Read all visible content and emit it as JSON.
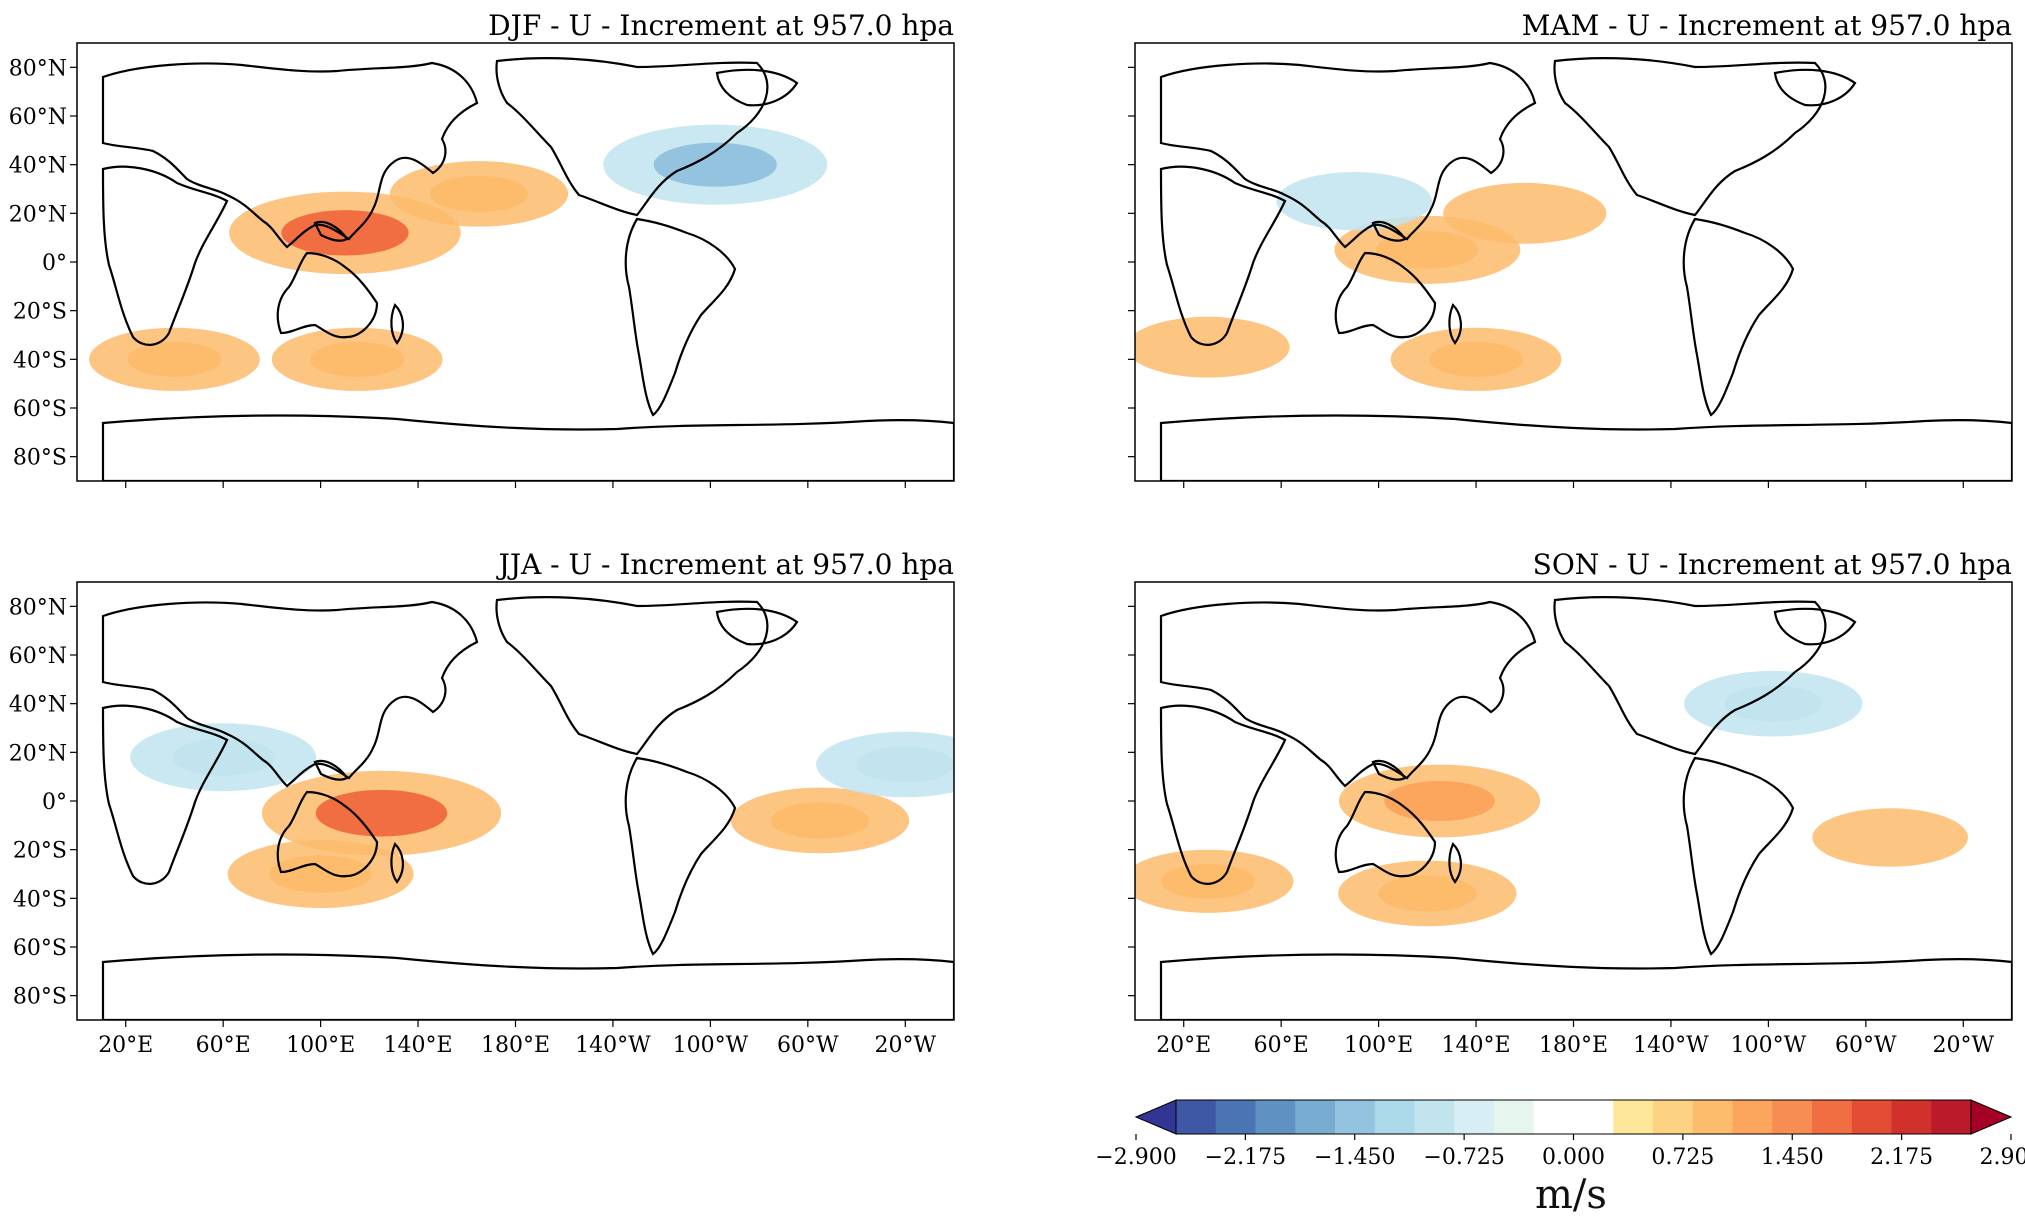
{
  "panels": [
    {
      "title": "DJF - U - Increment at 957.0 hpa",
      "season": "DJF"
    },
    {
      "title": "MAM - U - Increment at 957.0 hpa",
      "season": "MAM"
    },
    {
      "title": "JJA - U - Increment at 957.0 hpa",
      "season": "JJA"
    },
    {
      "title": "SON - U - Increment at 957.0 hpa",
      "season": "SON"
    }
  ],
  "lat_ticks": [
    "80°N",
    "60°N",
    "40°N",
    "20°N",
    "0°",
    "20°S",
    "40°S",
    "60°S",
    "80°S"
  ],
  "lon_ticks": [
    "20°E",
    "60°E",
    "100°E",
    "140°E",
    "180°E",
    "140°W",
    "100°W",
    "60°W",
    "20°W"
  ],
  "colorbar": {
    "unit": "m/s",
    "ticks": [
      "−2.900",
      "−2.175",
      "−1.450",
      "−0.725",
      "0.000",
      "0.725",
      "1.450",
      "2.175",
      "2.900"
    ],
    "colors": [
      "#313695",
      "#3f58a6",
      "#4a74b4",
      "#5f91c2",
      "#78abd0",
      "#93c3de",
      "#abd9e9",
      "#c1e4ef",
      "#d7eff4",
      "#e6f5ee",
      "#ffffff",
      "#ffffff",
      "#fee799",
      "#fed283",
      "#fdbb6c",
      "#fca55d",
      "#f88d52",
      "#f16e43",
      "#e34d34",
      "#d0322b",
      "#bb1a2b",
      "#a50026"
    ]
  },
  "chart_data": {
    "type": "heatmap",
    "projection": "PlateCarree, central longitude 180",
    "variable": "U",
    "level_hpa": 957.0,
    "value_range": [
      -2.9,
      2.9
    ],
    "panels": [
      {
        "season": "DJF",
        "features": [
          {
            "lon": 165,
            "lat": 28,
            "value": 0.9
          },
          {
            "lon": 110,
            "lat": 12,
            "value": 1.6
          },
          {
            "lon": 40,
            "lat": -40,
            "value": 0.8
          },
          {
            "lon": 115,
            "lat": -40,
            "value": 0.8
          },
          {
            "lon": 262,
            "lat": 40,
            "value": -1.5
          }
        ]
      },
      {
        "season": "MAM",
        "features": [
          {
            "lon": 120,
            "lat": 5,
            "value": 1.0
          },
          {
            "lon": 160,
            "lat": 20,
            "value": 0.7
          },
          {
            "lon": 30,
            "lat": -35,
            "value": 0.7
          },
          {
            "lon": 140,
            "lat": -40,
            "value": 0.8
          },
          {
            "lon": 90,
            "lat": 25,
            "value": -0.6
          }
        ]
      },
      {
        "season": "JJA",
        "features": [
          {
            "lon": 100,
            "lat": -30,
            "value": 1.0
          },
          {
            "lon": 125,
            "lat": -5,
            "value": 1.7
          },
          {
            "lon": 60,
            "lat": 18,
            "value": -1.0
          },
          {
            "lon": 305,
            "lat": -8,
            "value": 0.9
          },
          {
            "lon": 340,
            "lat": 15,
            "value": -0.9
          }
        ]
      },
      {
        "season": "SON",
        "features": [
          {
            "lon": 125,
            "lat": 0,
            "value": 1.2
          },
          {
            "lon": 120,
            "lat": -38,
            "value": 0.9
          },
          {
            "lon": 30,
            "lat": -33,
            "value": 0.8
          },
          {
            "lon": 310,
            "lat": -15,
            "value": 0.6
          },
          {
            "lon": 262,
            "lat": 40,
            "value": -0.9
          }
        ]
      }
    ]
  }
}
